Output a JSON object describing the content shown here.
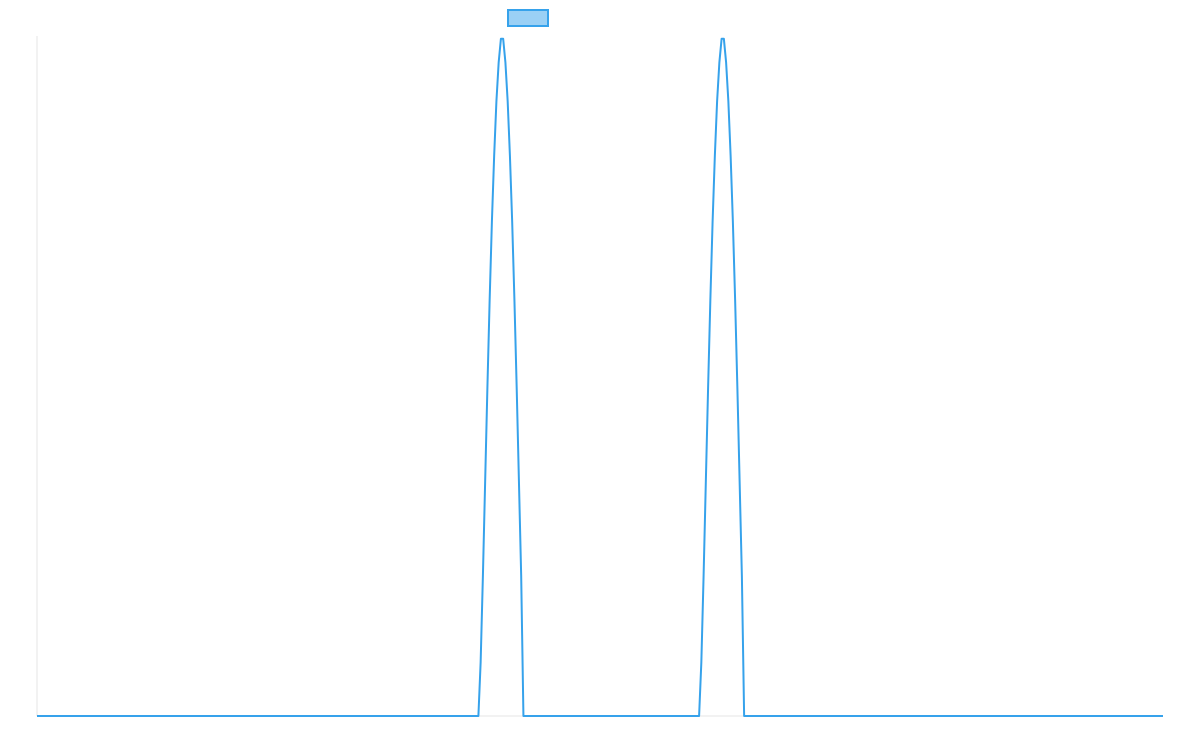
{
  "chart_data": {
    "type": "line",
    "title": "",
    "xlabel": "",
    "ylabel": "",
    "xlim": [
      0,
      1000
    ],
    "ylim": [
      0,
      1
    ],
    "grid": false,
    "legend": {
      "placement": "top-center",
      "entries": [
        ""
      ]
    },
    "series": [
      {
        "name": "",
        "color": "#36a2eb",
        "fill": "#9ad0f5",
        "x": [
          0,
          392,
          394,
          396,
          398,
          400,
          402,
          404,
          406,
          408,
          410,
          412,
          414,
          416,
          418,
          420,
          422,
          424,
          426,
          428,
          430,
          432,
          588,
          590,
          592,
          594,
          596,
          598,
          600,
          602,
          604,
          606,
          608,
          610,
          612,
          614,
          616,
          618,
          620,
          622,
          624,
          626,
          628,
          1000
        ],
        "y": [
          0,
          0,
          0.079,
          0.206,
          0.345,
          0.483,
          0.612,
          0.727,
          0.824,
          0.904,
          0.961,
          0.996,
          0.996,
          0.961,
          0.904,
          0.824,
          0.727,
          0.612,
          0.483,
          0.345,
          0.206,
          0,
          0,
          0.079,
          0.206,
          0.345,
          0.483,
          0.612,
          0.727,
          0.824,
          0.904,
          0.961,
          0.996,
          0.996,
          0.961,
          0.904,
          0.824,
          0.727,
          0.612,
          0.483,
          0.345,
          0.206,
          0,
          0
        ]
      }
    ]
  }
}
